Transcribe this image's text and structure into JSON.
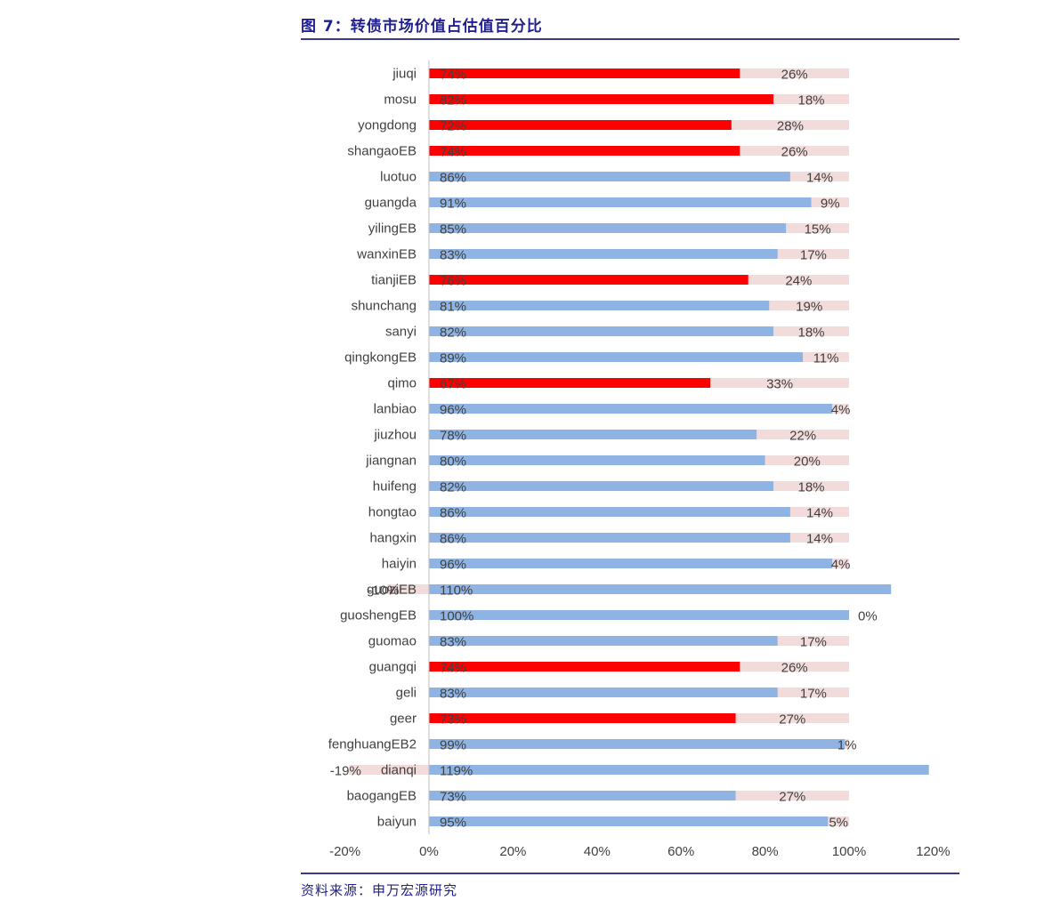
{
  "header": {
    "title": "图 7：转债市场价值占估值百分比"
  },
  "footer": {
    "source": "资料来源：申万宏源研究"
  },
  "colors": {
    "highlight": "#ff0000",
    "normal": "#8fb4e3",
    "remainder": "#f2dcdb",
    "rule": "#3a3a8c",
    "title": "#1f1f8f"
  },
  "chart_data": {
    "type": "bar",
    "orientation": "horizontal",
    "stacked": true,
    "title": "",
    "xlabel": "",
    "ylabel": "",
    "xlim": [
      -20,
      120
    ],
    "xticks": [
      "-20%",
      "0%",
      "20%",
      "40%",
      "60%",
      "80%",
      "100%",
      "120%"
    ],
    "grid": false,
    "legend": "none",
    "categories": [
      "jiuqi",
      "mosu",
      "yongdong",
      "shangaoEB",
      "luotuo",
      "guangda",
      "yilingEB",
      "wanxinEB",
      "tianjiEB",
      "shunchang",
      "sanyi",
      "qingkongEB",
      "qimo",
      "lanbiao",
      "jiuzhou",
      "jiangnan",
      "huifeng",
      "hongtao",
      "hangxin",
      "haiyin",
      "guoziEB",
      "guoshengEB",
      "guomao",
      "guangqi",
      "geli",
      "geer",
      "fenghuangEB2",
      "dianqi",
      "baogangEB",
      "baiyun"
    ],
    "series": [
      {
        "values": [
          74,
          82,
          72,
          74,
          86,
          91,
          85,
          83,
          76,
          81,
          82,
          89,
          67,
          96,
          78,
          80,
          82,
          86,
          86,
          96,
          110,
          100,
          83,
          74,
          83,
          73,
          99,
          119,
          73,
          95
        ],
        "labels": [
          "74%",
          "82%",
          "72%",
          "74%",
          "86%",
          "91%",
          "85%",
          "83%",
          "76%",
          "81%",
          "82%",
          "89%",
          "67%",
          "96%",
          "78%",
          "80%",
          "82%",
          "86%",
          "86%",
          "96%",
          "110%",
          "100%",
          "83%",
          "74%",
          "83%",
          "73%",
          "99%",
          "119%",
          "73%",
          "95%"
        ],
        "highlighted": [
          true,
          true,
          true,
          true,
          false,
          false,
          false,
          false,
          true,
          false,
          false,
          false,
          true,
          false,
          false,
          false,
          false,
          false,
          false,
          false,
          false,
          false,
          false,
          true,
          false,
          true,
          false,
          false,
          false,
          false
        ]
      },
      {
        "values": [
          26,
          18,
          28,
          26,
          14,
          9,
          15,
          17,
          24,
          19,
          18,
          11,
          33,
          4,
          22,
          20,
          18,
          14,
          14,
          4,
          -10,
          0,
          17,
          26,
          17,
          27,
          1,
          -19,
          27,
          5
        ],
        "labels": [
          "26%",
          "18%",
          "28%",
          "26%",
          "14%",
          "9%",
          "15%",
          "17%",
          "24%",
          "19%",
          "18%",
          "11%",
          "33%",
          "4%",
          "22%",
          "20%",
          "18%",
          "14%",
          "14%",
          "4%",
          "-10%",
          "0%",
          "17%",
          "26%",
          "17%",
          "27%",
          "1%",
          "-19%",
          "27%",
          "5%"
        ]
      }
    ]
  }
}
